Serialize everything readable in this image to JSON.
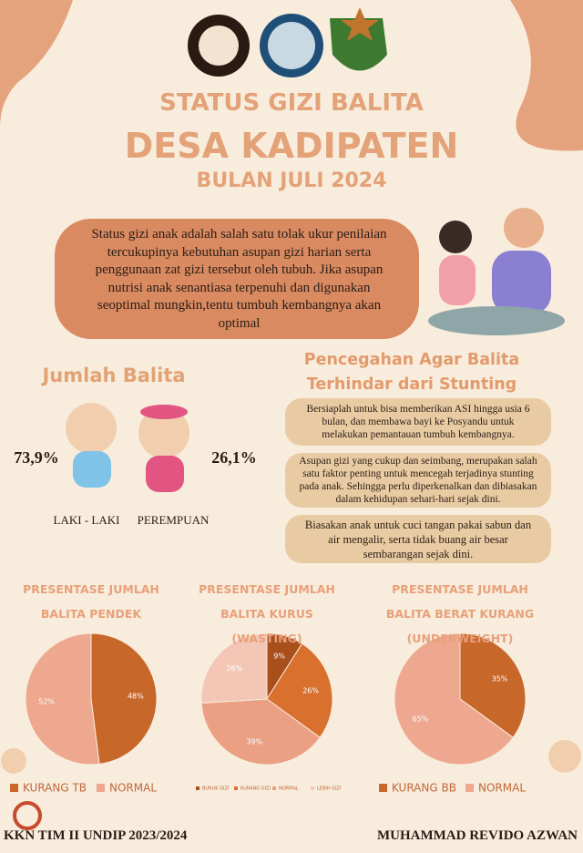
{
  "header": {
    "title": "STATUS GIZI BALITA",
    "subtitle": "DESA KADIPATEN",
    "date": "BULAN JULI 2024"
  },
  "intro": "Status gizi anak adalah salah satu tolak ukur penilaian tercukupinya kebutuhan asupan gizi harian serta penggunaan zat gizi tersebut oleh tubuh. Jika asupan nutrisi anak senantiasa terpenuhi dan digunakan seoptimal mungkin,tentu tumbuh kembangnya akan optimal",
  "count": {
    "title": "Jumlah Balita",
    "male_value": "73,9%",
    "male_label": "LAKI - LAKI",
    "female_value": "26,1%",
    "female_label": "PEREMPUAN"
  },
  "prevention": {
    "title": "Pencegahan Agar Balita Terhindar dari Stunting",
    "tips": [
      "Bersiaplah untuk bisa memberikan ASI hingga usia 6 bulan, dan membawa bayi ke Posyandu untuk melakukan pemantauan tumbuh kembangnya.",
      "Asupan gizi yang cukup dan seimbang, merupakan salah satu faktor penting untuk mencegah terjadinya stunting pada anak. Sehingga perlu diperkenalkan dan dibiasakan dalam kehidupan sehari-hari sejak dini.",
      "Biasakan anak untuk cuci tangan pakai sabun dan air mengalir, serta tidak buang air besar sembarangan sejak dini."
    ]
  },
  "chart_data": [
    {
      "type": "pie",
      "title": "PRESENTASE JUMLAH BALITA PENDEK",
      "categories": [
        "KURANG TB",
        "NORMAL"
      ],
      "values": [
        48,
        52
      ],
      "value_labels": [
        "48%",
        "52%"
      ],
      "colors": [
        "#c8672a",
        "#eda88f"
      ]
    },
    {
      "type": "pie",
      "title": "PRESENTASE JUMLAH BALITA KURUS (WASTING)",
      "categories": [
        "BURUK GIZI",
        "KURANG GIZI",
        "NORMAL",
        "LEBIH GIZI"
      ],
      "values": [
        9,
        26,
        39,
        26
      ],
      "value_labels": [
        "9%",
        "26%",
        "39%",
        "26%"
      ],
      "colors": [
        "#a84f1c",
        "#d9702e",
        "#eba084",
        "#f3c6b6"
      ]
    },
    {
      "type": "pie",
      "title": "PRESENTASE JUMLAH BALITA BERAT KURANG (UNDERWEIGHT)",
      "categories": [
        "KURANG BB",
        "NORMAL"
      ],
      "values": [
        35,
        65
      ],
      "value_labels": [
        "35%",
        "65%"
      ],
      "colors": [
        "#c8672a",
        "#eda88f"
      ]
    }
  ],
  "footer": {
    "left": "KKN TIM II UNDIP 2023/2024",
    "right": "MUHAMMAD REVIDO AZWAN"
  }
}
